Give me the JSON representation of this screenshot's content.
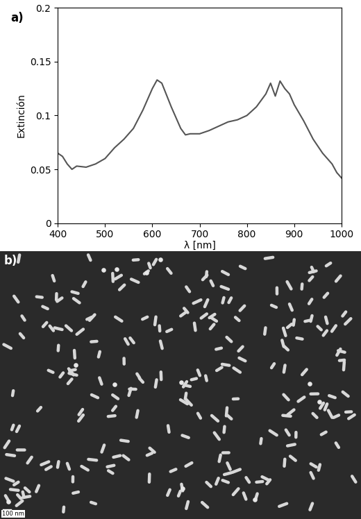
{
  "chart_data": {
    "type": "line",
    "label": "a)",
    "x_label": "λ [nm]",
    "y_label": "Extinción",
    "x": [
      400,
      410,
      420,
      430,
      440,
      460,
      480,
      500,
      520,
      540,
      560,
      580,
      600,
      610,
      620,
      640,
      660,
      670,
      680,
      700,
      720,
      740,
      760,
      780,
      800,
      820,
      840,
      850,
      860,
      870,
      880,
      890,
      900,
      920,
      940,
      960,
      980,
      990,
      1000
    ],
    "values": [
      0.065,
      0.062,
      0.055,
      0.05,
      0.053,
      0.052,
      0.055,
      0.06,
      0.07,
      0.078,
      0.088,
      0.105,
      0.125,
      0.133,
      0.13,
      0.108,
      0.088,
      0.082,
      0.083,
      0.083,
      0.086,
      0.09,
      0.094,
      0.096,
      0.1,
      0.108,
      0.12,
      0.13,
      0.118,
      0.132,
      0.125,
      0.12,
      0.11,
      0.095,
      0.078,
      0.065,
      0.055,
      0.047,
      0.042
    ],
    "color": "#555555",
    "xlim": [
      400,
      1000
    ],
    "xticks": [
      400,
      500,
      600,
      700,
      800,
      900,
      1000
    ],
    "ylim": [
      0,
      0.2
    ],
    "yticks": [
      0,
      0.05,
      0.1,
      0.15,
      0.2
    ],
    "grid": false
  },
  "image": {
    "label": "b)",
    "scale_bar": "100 nm"
  }
}
